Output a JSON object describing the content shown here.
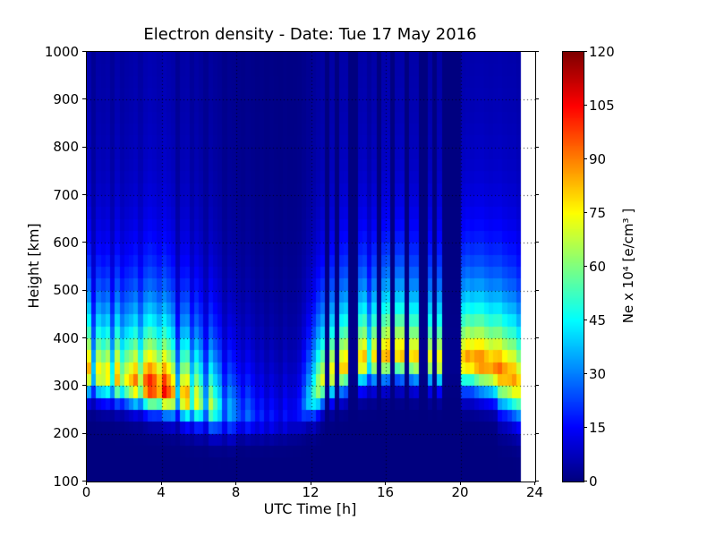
{
  "chart_data": {
    "type": "heatmap",
    "title": "Electron density - Date: Tue 17 May 2016",
    "xlabel": "UTC Time [h]",
    "ylabel": "Height [km]",
    "x_range": [
      0,
      24
    ],
    "y_range": [
      100,
      1000
    ],
    "x_ticks": [
      0,
      4,
      8,
      12,
      16,
      20,
      24
    ],
    "y_ticks": [
      100,
      200,
      300,
      400,
      500,
      600,
      700,
      800,
      900,
      1000
    ],
    "x_gridlines": [
      4,
      8,
      12,
      16,
      20
    ],
    "y_gridlines": [
      200,
      300,
      400,
      500,
      600,
      700,
      800,
      900
    ],
    "grid_style": "dotted",
    "colormap": "jet",
    "min_color": "#000080",
    "max_color": "#800000",
    "colorbar": {
      "label": "Ne x 10⁴  [e/cm³ ]",
      "range": [
        0,
        120
      ],
      "ticks": [
        0,
        15,
        30,
        45,
        60,
        75,
        90,
        105,
        120
      ]
    },
    "time_start_h": 0,
    "time_step_h": 0.25,
    "height_step_km": 25,
    "profile_model": {
      "top_scale_km": 135,
      "top_shape": 1.15,
      "top_fraction": 0.88,
      "tail_fraction": 0.12,
      "tail_scale_km": 900
    },
    "columns": {
      "peak_density_1e4_e_cm3": [
        85,
        40,
        78,
        72,
        80,
        48,
        85,
        62,
        75,
        82,
        92,
        68,
        96,
        106,
        100,
        88,
        108,
        96,
        85,
        40,
        82,
        88,
        52,
        76,
        62,
        35,
        68,
        55,
        45,
        25,
        38,
        32,
        26,
        20,
        28,
        22,
        16,
        20,
        13,
        18,
        14,
        11,
        17,
        13,
        14,
        18,
        28,
        40,
        52,
        66,
        72,
        2,
        76,
        2,
        80,
        82,
        2,
        2,
        80,
        84,
        50,
        78,
        2,
        82,
        86,
        2,
        80,
        83,
        2,
        78,
        80,
        2,
        2,
        74,
        2,
        76,
        2,
        2,
        2,
        2,
        82,
        88,
        85,
        90,
        92,
        88,
        86,
        90,
        93,
        88,
        86,
        88,
        80,
        null,
        null,
        null
      ],
      "peak_height_km": [
        335,
        330,
        330,
        325,
        325,
        320,
        320,
        318,
        315,
        312,
        310,
        308,
        305,
        302,
        300,
        298,
        295,
        292,
        288,
        285,
        282,
        278,
        275,
        272,
        268,
        265,
        262,
        258,
        255,
        252,
        250,
        248,
        245,
        242,
        240,
        240,
        238,
        236,
        235,
        235,
        235,
        235,
        238,
        240,
        242,
        248,
        258,
        270,
        285,
        300,
        315,
        320,
        330,
        335,
        340,
        345,
        350,
        352,
        355,
        358,
        360,
        362,
        362,
        365,
        368,
        370,
        370,
        368,
        365,
        365,
        362,
        360,
        360,
        358,
        355,
        355,
        352,
        352,
        350,
        350,
        358,
        360,
        358,
        355,
        352,
        348,
        345,
        342,
        338,
        332,
        326,
        320,
        310,
        null,
        null,
        null
      ],
      "bottom_width_km": [
        50,
        50,
        50,
        50,
        50,
        50,
        50,
        50,
        50,
        50,
        50,
        50,
        50,
        50,
        50,
        50,
        50,
        50,
        50,
        50,
        50,
        50,
        50,
        50,
        50,
        50,
        50,
        50,
        50,
        50,
        50,
        50,
        40,
        40,
        40,
        40,
        40,
        40,
        40,
        40,
        40,
        40,
        40,
        40,
        40,
        40,
        40,
        40,
        52,
        52,
        52,
        52,
        52,
        52,
        52,
        52,
        52,
        52,
        52,
        52,
        52,
        52,
        52,
        52,
        52,
        52,
        52,
        52,
        52,
        52,
        52,
        52,
        52,
        52,
        52,
        52,
        52,
        52,
        52,
        52,
        62,
        62,
        62,
        62,
        62,
        62,
        62,
        62,
        75,
        75,
        75,
        75,
        75,
        null,
        null,
        null
      ]
    },
    "no_data_note": "null columns (after 23:15 UTC) are rendered white"
  },
  "layout_text": {
    "background": "#ffffff"
  }
}
